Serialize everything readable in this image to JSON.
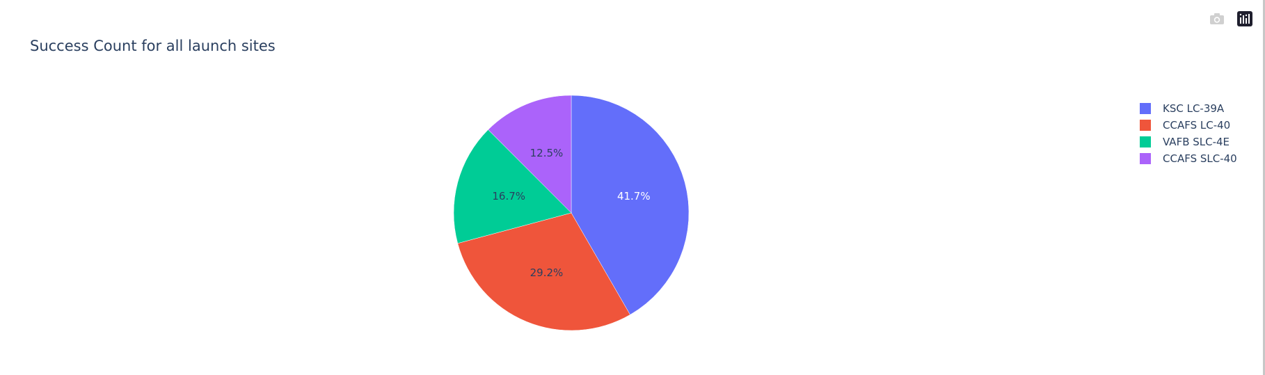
{
  "chart_data": {
    "type": "pie",
    "title": "Success Count for all launch sites",
    "categories": [
      "KSC LC-39A",
      "CCAFS LC-40",
      "VAFB SLC-4E",
      "CCAFS SLC-40"
    ],
    "values": [
      41.7,
      29.2,
      16.7,
      12.5
    ],
    "labels": [
      "41.7%",
      "29.2%",
      "16.7%",
      "12.5%"
    ],
    "colors": [
      "#636efa",
      "#ef553b",
      "#00cc96",
      "#ab63fa"
    ],
    "direction": "clockwise",
    "start_angle": 90,
    "legend_position": "top-right"
  },
  "modebar": {
    "icons": [
      "camera-icon",
      "plotly-logo-icon"
    ]
  }
}
